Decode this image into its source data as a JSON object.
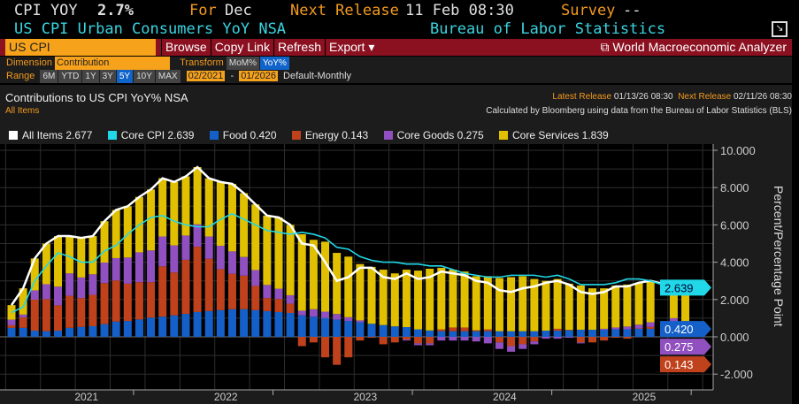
{
  "header": {
    "ticker": "CPI YOY",
    "value": "2.7%",
    "for_label": "For",
    "period": "Dec",
    "next_label": "Next Release",
    "next_value": "11 Feb 08:30",
    "survey_label": "Survey",
    "survey_value": "--",
    "title": "US CPI Urban Consumers YoY NSA",
    "source": "Bureau of Labor Statistics"
  },
  "toolbar": {
    "search_value": "US CPI",
    "browse": "Browse",
    "copy_link": "Copy Link",
    "refresh": "Refresh",
    "export": "Export ▾",
    "wma": "World Macroeconomic Analyzer"
  },
  "controls": {
    "dimension_label": "Dimension",
    "dimension_value": "Contribution",
    "transform_label": "Transform",
    "transforms": [
      "MoM%",
      "YoY%"
    ],
    "range_label": "Range",
    "ranges": [
      "6M",
      "YTD",
      "1Y",
      "3Y",
      "5Y",
      "10Y",
      "MAX"
    ],
    "start": "02/2021",
    "dash": "-",
    "end": "01/2026",
    "frequency": "Default-Monthly"
  },
  "chart_header": {
    "title": "Contributions to US CPI YoY% NSA",
    "subtitle": "All Items",
    "latest_label": "Latest Release",
    "latest_value": "01/13/26 08:30",
    "next_label": "Next Release",
    "next_value": "02/11/26 08:30",
    "note": "Calculated by Bloomberg using data from the Bureau of Labor Statistics (BLS)"
  },
  "legend": [
    {
      "label": "All Items 2.677",
      "color": "#ffffff"
    },
    {
      "label": "Core CPI 2.639",
      "color": "#20d8e8"
    },
    {
      "label": "Food 0.420",
      "color": "#1560c8"
    },
    {
      "label": "Energy 0.143",
      "color": "#c0421c"
    },
    {
      "label": "Core Goods 0.275",
      "color": "#9050c0"
    },
    {
      "label": "Core Services 1.839",
      "color": "#e0c000"
    }
  ],
  "chart_data": {
    "type": "bar",
    "stacked": true,
    "start_month": "2021-02",
    "ylabel": "Percent/Percentage Point",
    "ylim": [
      -3,
      10
    ],
    "yticks": [
      "10.000",
      "8.000",
      "6.000",
      "4.000",
      "2.000",
      "0.000",
      "-2.000"
    ],
    "ytick_values": [
      10,
      8,
      6,
      4,
      2,
      0,
      -2
    ],
    "xticks": [
      "2021",
      "2022",
      "2023",
      "2024",
      "2025"
    ],
    "series": [
      {
        "name": "Food",
        "color": "#1560c8",
        "values": [
          0.48,
          0.48,
          0.33,
          0.3,
          0.33,
          0.48,
          0.53,
          0.57,
          0.68,
          0.82,
          0.85,
          0.93,
          1.03,
          1.08,
          1.15,
          1.23,
          1.33,
          1.38,
          1.43,
          1.48,
          1.48,
          1.43,
          1.38,
          1.33,
          1.28,
          1.15,
          1.08,
          1.0,
          0.92,
          0.85,
          0.78,
          0.7,
          0.63,
          0.56,
          0.52,
          0.4,
          0.34,
          0.3,
          0.3,
          0.3,
          0.3,
          0.3,
          0.3,
          0.3,
          0.3,
          0.3,
          0.33,
          0.33,
          0.35,
          0.38,
          0.38,
          0.38,
          0.4,
          0.4,
          0.43,
          0.43,
          null,
          0.4,
          0.42
        ]
      },
      {
        "name": "Energy",
        "color": "#c0421c",
        "values": [
          0.14,
          0.56,
          1.66,
          1.72,
          1.36,
          1.72,
          1.55,
          1.68,
          2.2,
          2.2,
          2.0,
          2.0,
          1.9,
          2.7,
          2.3,
          2.9,
          3.5,
          2.8,
          2.2,
          1.9,
          1.8,
          1.3,
          0.7,
          0.7,
          0.5,
          -0.5,
          -0.3,
          -1.1,
          -1.5,
          -1.1,
          -0.2,
          -0.05,
          -0.4,
          -0.3,
          -0.15,
          -0.35,
          -0.35,
          0.1,
          0.2,
          0.2,
          0.05,
          0.1,
          -0.3,
          -0.5,
          -0.4,
          -0.25,
          0.0,
          0.1,
          0.02,
          -0.3,
          -0.3,
          -0.2,
          -0.05,
          -0.1,
          0.02,
          0.1,
          null,
          0.3,
          0.143
        ]
      },
      {
        "name": "Core Goods",
        "color": "#9050c0",
        "values": [
          0.3,
          0.15,
          0.5,
          0.8,
          1.0,
          1.2,
          1.1,
          1.1,
          1.1,
          1.2,
          1.4,
          1.6,
          1.7,
          1.6,
          1.45,
          1.3,
          1.2,
          1.2,
          1.25,
          1.2,
          1.0,
          0.85,
          0.7,
          0.55,
          0.45,
          0.25,
          0.4,
          0.35,
          0.3,
          0.2,
          0.1,
          0.0,
          0.0,
          0.0,
          -0.05,
          -0.1,
          -0.1,
          -0.2,
          -0.2,
          -0.2,
          -0.25,
          -0.35,
          -0.35,
          -0.3,
          -0.25,
          -0.15,
          -0.1,
          -0.1,
          -0.05,
          -0.05,
          0.0,
          0.05,
          0.1,
          0.15,
          0.2,
          0.25,
          null,
          0.3,
          0.275
        ]
      },
      {
        "name": "Core Services",
        "color": "#e0c000",
        "values": [
          0.78,
          1.41,
          1.71,
          2.18,
          2.71,
          2.0,
          2.12,
          2.05,
          2.22,
          2.58,
          2.75,
          2.97,
          3.27,
          3.12,
          3.4,
          3.17,
          3.07,
          3.12,
          3.42,
          3.62,
          3.42,
          3.52,
          3.72,
          3.82,
          3.77,
          4.1,
          3.72,
          3.75,
          3.28,
          3.25,
          3.02,
          3.05,
          2.97,
          2.84,
          3.08,
          3.15,
          3.31,
          3.3,
          3.1,
          3.0,
          2.9,
          2.85,
          2.85,
          2.9,
          2.95,
          2.8,
          2.67,
          2.67,
          2.48,
          2.37,
          2.22,
          2.17,
          2.25,
          2.25,
          2.25,
          2.22,
          null,
          1.7,
          1.839
        ]
      }
    ],
    "lines": [
      {
        "name": "All Items",
        "color": "#ffffff",
        "values": [
          1.7,
          2.6,
          4.2,
          5.0,
          5.4,
          5.4,
          5.3,
          5.4,
          6.2,
          6.8,
          7.0,
          7.5,
          7.9,
          8.5,
          8.3,
          8.6,
          9.1,
          8.5,
          8.3,
          8.2,
          7.7,
          7.1,
          6.5,
          6.4,
          6.0,
          5.0,
          4.9,
          4.0,
          3.0,
          3.2,
          3.7,
          3.7,
          3.2,
          3.1,
          3.4,
          3.1,
          3.2,
          3.5,
          3.4,
          3.3,
          3.0,
          2.9,
          2.5,
          2.4,
          2.6,
          2.7,
          2.9,
          3.0,
          2.8,
          2.4,
          2.3,
          2.4,
          2.7,
          2.7,
          2.9,
          3.0,
          null,
          2.7,
          2.677
        ]
      },
      {
        "name": "Core CPI",
        "color": "#20d8e8",
        "values": [
          1.3,
          1.6,
          3.0,
          3.8,
          4.5,
          4.3,
          4.0,
          4.0,
          4.6,
          4.9,
          5.5,
          6.0,
          6.4,
          6.5,
          6.2,
          6.0,
          5.9,
          5.9,
          6.3,
          6.6,
          6.3,
          6.0,
          5.7,
          5.6,
          5.5,
          5.6,
          5.5,
          5.3,
          4.8,
          4.7,
          4.3,
          4.1,
          4.0,
          4.0,
          3.9,
          3.9,
          3.8,
          3.8,
          3.6,
          3.4,
          3.3,
          3.2,
          3.2,
          3.3,
          3.3,
          3.3,
          3.2,
          3.3,
          3.1,
          2.8,
          2.8,
          2.8,
          2.9,
          3.1,
          3.1,
          3.0,
          null,
          2.6,
          2.639
        ]
      }
    ],
    "tags": [
      {
        "label": "0.420",
        "color": "#1560c8",
        "value": 0.42
      },
      {
        "label": "0.143",
        "color": "#c0421c",
        "value": 0.143
      },
      {
        "label": "0.275",
        "color": "#9050c0",
        "value": 0.275
      },
      {
        "label": "2.639",
        "color": "#20d8e8",
        "value": 2.639
      }
    ]
  }
}
